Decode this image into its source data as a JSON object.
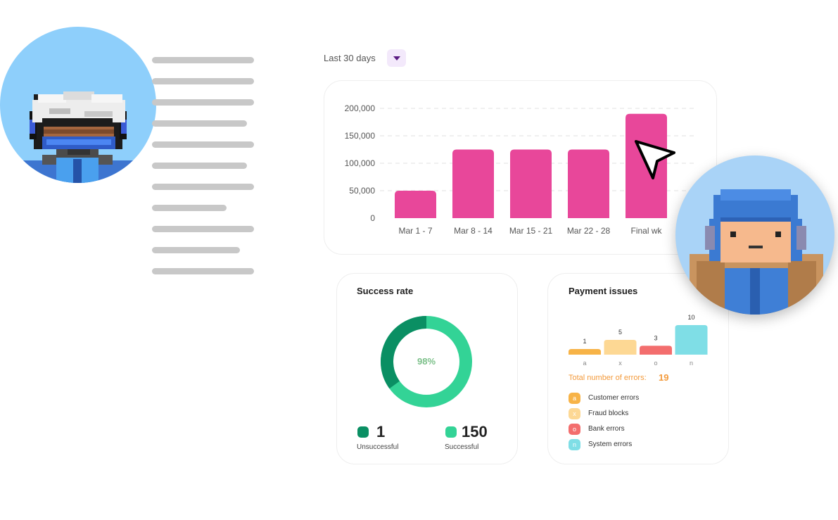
{
  "filter": {
    "range_label": "Last 30 days"
  },
  "revenue_chart": {
    "chart_data": {
      "type": "bar",
      "categories": [
        "Mar 1 - 7",
        "Mar 8 - 14",
        "Mar 15 - 21",
        "Mar 22 - 28",
        "Final wk"
      ],
      "values": [
        50000,
        125000,
        125000,
        125000,
        190000
      ],
      "y_ticks": [
        "200,000",
        "150,000",
        "100,000",
        "50,000",
        "0"
      ],
      "ylim": [
        0,
        200000
      ],
      "grid": true,
      "color": "#e8479a"
    }
  },
  "success_rate": {
    "title": "Success rate",
    "percent_label": "98%",
    "unsuccessful": {
      "value": "1",
      "label": "Unsuccessful",
      "color": "#0a8f63"
    },
    "successful": {
      "value": "150",
      "label": "Successful",
      "color": "#33d396"
    }
  },
  "payment_issues": {
    "title": "Payment issues",
    "chart_data": {
      "type": "bar",
      "categories": [
        "a",
        "x",
        "o",
        "n"
      ],
      "values": [
        1,
        5,
        3,
        10
      ],
      "value_labels": [
        "1",
        "5",
        "3",
        "10"
      ],
      "colors": [
        "#f7b347",
        "#fdd894",
        "#f36e6e",
        "#7fdee6"
      ]
    },
    "total_label": "Total number of errors:",
    "total_value": "19",
    "legend": [
      {
        "key": "a",
        "label": "Customer errors",
        "color": "#f7b347"
      },
      {
        "key": "x",
        "label": "Fraud blocks",
        "color": "#fdd894"
      },
      {
        "key": "o",
        "label": "Bank errors",
        "color": "#f36e6e"
      },
      {
        "key": "n",
        "label": "System errors",
        "color": "#7fdee6"
      }
    ]
  },
  "icons": {
    "dropdown": "caret-down-icon",
    "cursor": "mouse-pointer-icon",
    "avatar_left": "pixel-avatar-helmet",
    "avatar_right": "pixel-avatar-parka"
  }
}
